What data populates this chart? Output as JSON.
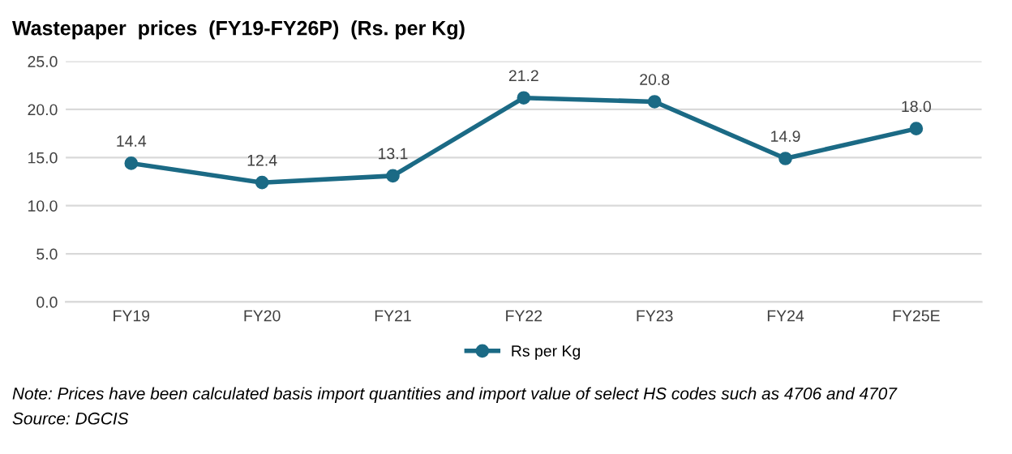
{
  "chart_data": {
    "type": "line",
    "title": "Wastepaper  prices  (FY19-FY26P)  (Rs. per Kg)",
    "categories": [
      "FY19",
      "FY20",
      "FY21",
      "FY22",
      "FY23",
      "FY24",
      "FY25E"
    ],
    "series": [
      {
        "name": "Rs per Kg",
        "color": "#1b6a85",
        "values": [
          14.4,
          12.4,
          13.1,
          21.2,
          20.8,
          14.9,
          18.0
        ],
        "value_labels": [
          "14.4",
          "12.4",
          "13.1",
          "21.2",
          "20.8",
          "14.9",
          "18.0"
        ]
      }
    ],
    "ylim": [
      0,
      25
    ],
    "yticks": [
      {
        "value": 0,
        "label": "0.0"
      },
      {
        "value": 5,
        "label": "5.0"
      },
      {
        "value": 10,
        "label": "10.0"
      },
      {
        "value": 15,
        "label": "15.0"
      },
      {
        "value": 20,
        "label": "20.0"
      },
      {
        "value": 25,
        "label": "25.0"
      }
    ],
    "grid": "y",
    "legend": "bottom",
    "marker": "circle",
    "line_style": "solid",
    "annotations": [
      "Note: Prices have been calculated basis import quantities and import value of select HS codes such as 4706 and 4707",
      "Source: DGCIS"
    ]
  }
}
